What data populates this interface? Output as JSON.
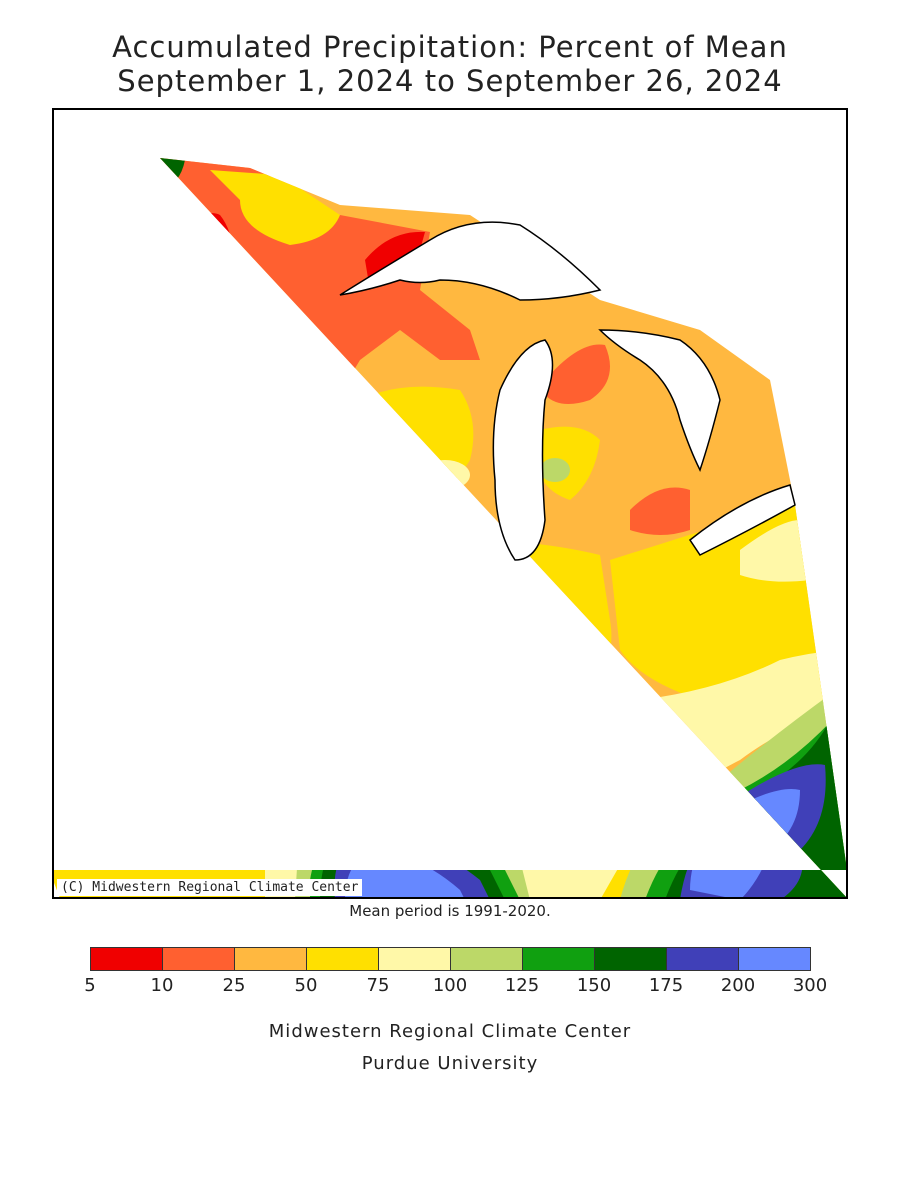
{
  "title": "Accumulated Precipitation: Percent of Mean",
  "subtitle": "September 1, 2024 to September 26, 2024",
  "copyright": "(C) Midwestern Regional Climate Center",
  "note": "Mean period is 1991-2020.",
  "legend": {
    "bounds": [
      "5",
      "10",
      "25",
      "50",
      "75",
      "100",
      "125",
      "150",
      "175",
      "200",
      "300"
    ],
    "colors": [
      "#f00000",
      "#ff6030",
      "#ffb840",
      "#ffe000",
      "#fff8a8",
      "#bcd868",
      "#10a010",
      "#006400",
      "#4040b8",
      "#6688ff"
    ]
  },
  "credits": {
    "line1": "Midwestern Regional Climate Center",
    "line2": "Purdue University"
  }
}
